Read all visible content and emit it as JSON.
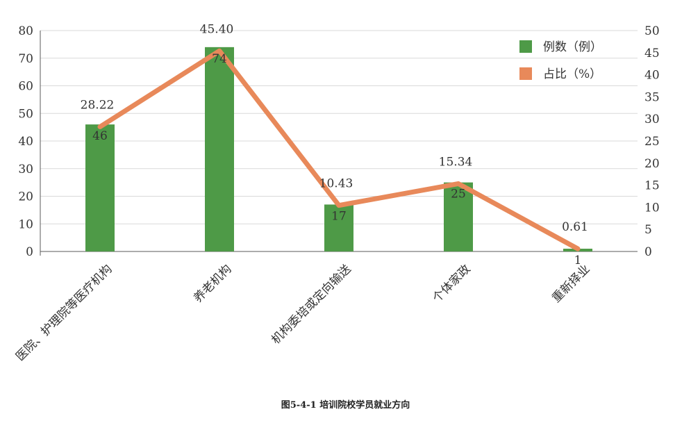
{
  "caption": "图5-4-1 培训院校学员就业方向",
  "colors": {
    "bar": "#4e9a47",
    "line": "#e8895a",
    "grid": "#d9d9d9",
    "axis": "#595959"
  },
  "chart_data": {
    "type": "bar",
    "categories": [
      "医院、护理院等医疗机构",
      "养老机构",
      "机构委培或定向输送",
      "个体家政",
      "重新择业"
    ],
    "series": [
      {
        "name": "例数（例）",
        "type": "bar",
        "axis": "left",
        "values": [
          46,
          74,
          17,
          25,
          1
        ],
        "labels": [
          "46",
          "74",
          "17",
          "25",
          "1"
        ]
      },
      {
        "name": "占比（%）",
        "type": "line",
        "axis": "right",
        "values": [
          28.22,
          45.4,
          10.43,
          15.34,
          0.61
        ],
        "labels": [
          "28.22",
          "45.40",
          "10.43",
          "15.34",
          "0.61"
        ]
      }
    ],
    "yleft": {
      "ylim": [
        0,
        80
      ],
      "ticks": [
        "0",
        "10",
        "20",
        "30",
        "40",
        "50",
        "60",
        "70",
        "80"
      ]
    },
    "yright": {
      "ylim": [
        0,
        50
      ],
      "ticks": [
        "0",
        "5",
        "10",
        "15",
        "20",
        "25",
        "30",
        "35",
        "40",
        "45",
        "50"
      ]
    },
    "grid": true,
    "legend": "top-right"
  }
}
